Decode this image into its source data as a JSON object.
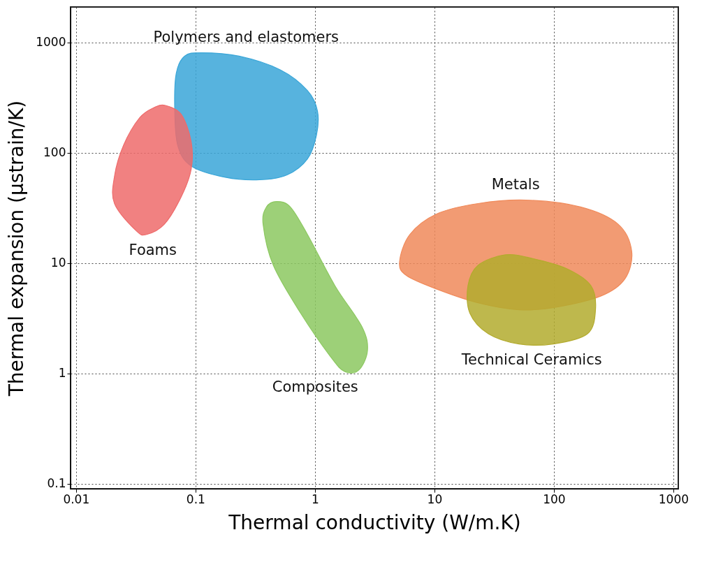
{
  "chart_data": {
    "type": "area",
    "xlabel": "Thermal conductivity (W/m.K)",
    "ylabel": "Thermal expansion (µstrain/K)",
    "log": "xy",
    "grid": true,
    "xlim": [
      0.009,
      1100
    ],
    "ylim": [
      0.09,
      2100
    ],
    "xticks": [
      0.01,
      0.1,
      1,
      10,
      100,
      1000
    ],
    "yticks": [
      0.1,
      1,
      10,
      100,
      1000
    ],
    "series": [
      {
        "name": "Polymers and elastomers",
        "color": "#3aa6d8",
        "x": [
          0.069,
          0.081,
          0.112,
          0.232,
          0.512,
          0.865,
          1.05,
          1.03,
          0.865,
          0.583,
          0.344,
          0.178,
          0.092,
          0.071,
          0.067
        ],
        "values": [
          525,
          752,
          808,
          752,
          565,
          367,
          239,
          145,
          88,
          63,
          57,
          60,
          76,
          117,
          257
        ]
      },
      {
        "name": "Foams",
        "color": "#ee6b6b",
        "x": [
          0.056,
          0.076,
          0.092,
          0.092,
          0.076,
          0.055,
          0.039,
          0.032,
          0.021,
          0.021,
          0.025,
          0.034,
          0.045
        ],
        "values": [
          269,
          223,
          126,
          71,
          40,
          22.6,
          18.2,
          19.6,
          34.7,
          61.5,
          117,
          207,
          257
        ]
      },
      {
        "name": "Composites",
        "color": "#8cc860",
        "x": [
          0.479,
          0.622,
          0.865,
          1.47,
          2.48,
          2.75,
          2.32,
          1.78,
          1.37,
          0.759,
          0.448,
          0.368,
          0.393
        ],
        "values": [
          36.2,
          32.3,
          18.2,
          6.24,
          2.64,
          1.6,
          1.07,
          1.04,
          1.39,
          3.52,
          9.57,
          22.6,
          32.3
        ]
      },
      {
        "name": "Metals",
        "color": "#f08a5a",
        "x": [
          5.11,
          6.23,
          10.5,
          23.2,
          58.3,
          167,
          344,
          448,
          393,
          248,
          98.6,
          51.1,
          23.2,
          10.5,
          5.83
        ],
        "values": [
          10.3,
          18.2,
          28,
          34.7,
          37.3,
          32.3,
          22.6,
          12.8,
          7.2,
          5.04,
          3.95,
          3.78,
          4.37,
          5.81,
          7.73
        ]
      },
      {
        "name": "Technical Ceramics",
        "color": "#b3ab2e",
        "x": [
          19.1,
          23.2,
          39.3,
          66.5,
          128,
          204,
          223,
          191,
          98.6,
          51.1,
          28.3,
          19.8
        ],
        "values": [
          6.24,
          9.57,
          11.9,
          11.0,
          8.9,
          6.24,
          3.78,
          2.29,
          1.85,
          1.85,
          2.29,
          3.52
        ]
      }
    ]
  }
}
